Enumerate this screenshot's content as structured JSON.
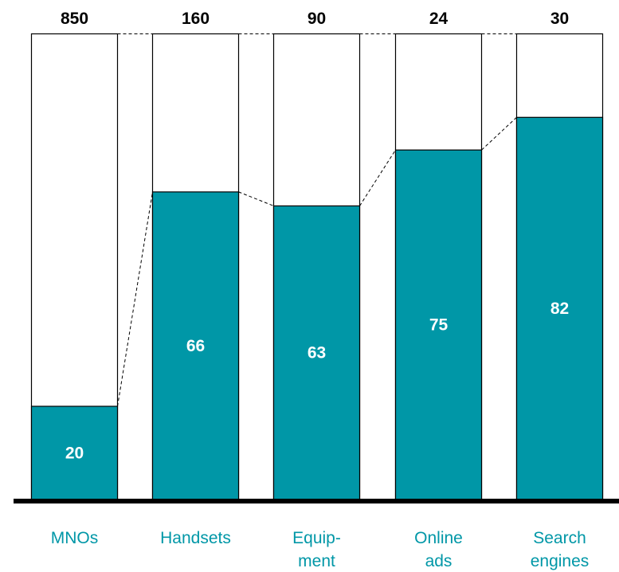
{
  "chart_data": {
    "type": "bar",
    "stacked_percent": true,
    "categories": [
      "MNOs",
      "Handsets",
      "Equip-ment",
      "Online ads",
      "Search engines"
    ],
    "category_lines": [
      [
        "MNOs"
      ],
      [
        "Handsets"
      ],
      [
        "Equip-",
        "ment"
      ],
      [
        "Online",
        "ads"
      ],
      [
        "Search",
        "engines"
      ]
    ],
    "totals": [
      "850",
      "160",
      "90",
      "24",
      "30"
    ],
    "values": [
      20,
      66,
      63,
      75,
      82
    ],
    "value_labels": [
      "20",
      "66",
      "63",
      "75",
      "82"
    ],
    "ylim": [
      0,
      100
    ],
    "grid": false,
    "colors": {
      "bar": "#0097A7",
      "remainder": "#FFFFFF",
      "outline": "#000000",
      "axis": "#000000",
      "category_text": "#0097A7"
    }
  }
}
